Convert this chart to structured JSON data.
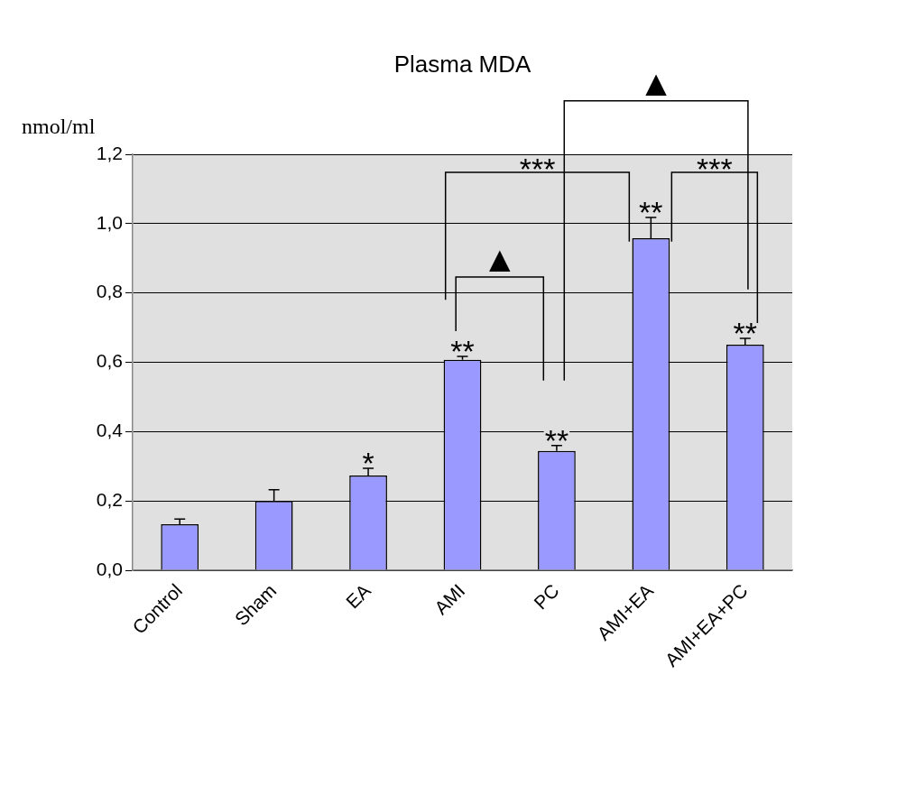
{
  "chart_data": {
    "type": "bar",
    "title": "Plasma MDA",
    "ylabel": "nmol/ml",
    "categories": [
      "Control",
      "Sham",
      "EA",
      "AMI",
      "PC",
      "AMI+EA",
      "AMI+EA+PC"
    ],
    "values": [
      0.133,
      0.2,
      0.273,
      0.607,
      0.344,
      0.958,
      0.651
    ],
    "color": "#9999ff",
    "errors": [
      [
        0.133,
        0.148
      ],
      [
        0.2,
        0.232
      ],
      [
        0.273,
        0.294
      ],
      [
        0.607,
        0.617
      ],
      [
        0.344,
        0.36
      ],
      [
        0.958,
        1.018
      ],
      [
        0.651,
        0.669
      ]
    ],
    "ylim": [
      0,
      1.2
    ],
    "yticks": [
      {
        "value": 0,
        "label": "0,0"
      },
      {
        "value": 0.2,
        "label": "0,2"
      },
      {
        "value": 0.4,
        "label": "0,4"
      },
      {
        "value": 0.6,
        "label": "0,6"
      },
      {
        "value": 0.8,
        "label": "0,8"
      },
      {
        "value": 1.0,
        "label": "1,0"
      },
      {
        "value": 1.2,
        "label": "1,2"
      }
    ],
    "grid": "y",
    "annotations": [
      {
        "text": "*",
        "x": "EA",
        "y": 0.294
      },
      {
        "text": "**",
        "x": "AMI",
        "y": 0.617
      },
      {
        "text": "**",
        "x": "PC",
        "y": 0.36
      },
      {
        "text": "**",
        "x": "AMI+EA",
        "y": 1.018
      },
      {
        "text": "**",
        "x": "AMI+EA+PC",
        "y": 0.669
      },
      "***",
      "***",
      "▲",
      "▲"
    ]
  }
}
